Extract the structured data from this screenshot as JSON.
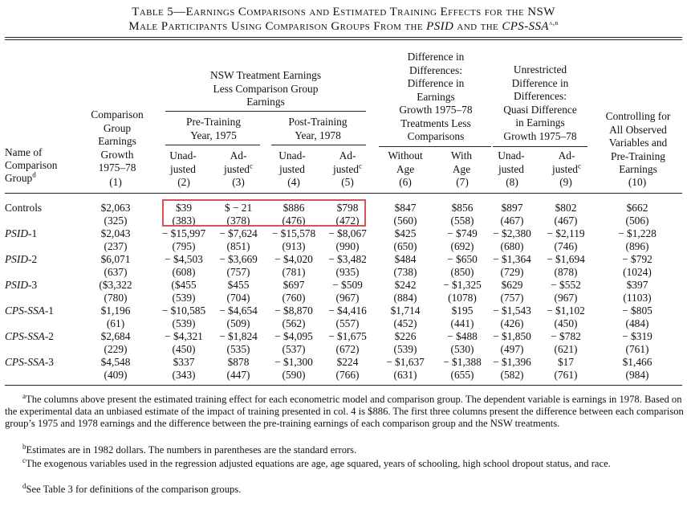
{
  "title": {
    "line1": "Table 5—Earnings Comparisons and Estimated Training Effects for the NSW",
    "line2_pre": "Male Participants Using Comparison Groups From the ",
    "psid": "PSID",
    "and_the": " and the ",
    "cpsssa": "CPS-SSA",
    "marks": "a,b"
  },
  "headers": {
    "col1": [
      "Comparison",
      "Group",
      "Earnings",
      "Growth",
      "1975–78"
    ],
    "group_a": [
      "NSW Treatment Earnings",
      "Less Comparison Group",
      "Earnings"
    ],
    "pre": [
      "Pre-Training",
      "Year, 1975"
    ],
    "post": [
      "Post-Training",
      "Year, 1978"
    ],
    "unadjusted": [
      "Unad-",
      "justed"
    ],
    "adjusted": [
      "Ad-",
      "justed"
    ],
    "adjusted_mark": "c",
    "did": [
      "Difference in",
      "Differences:",
      "Difference in",
      "Earnings",
      "Growth 1975–78",
      "Treatments Less",
      "Comparisons"
    ],
    "without_age": [
      "Without",
      "Age"
    ],
    "with_age": [
      "With",
      "Age"
    ],
    "unrestricted": [
      "Unrestricted",
      "Difference in",
      "Differences:",
      "Quasi Difference",
      "in Earnings",
      "Growth 1975–78"
    ],
    "controlling": [
      "Controlling for",
      "All Observed",
      "Variables and",
      "Pre-Training",
      "Earnings"
    ],
    "name_of": [
      "Name of",
      "Comparison",
      "Group"
    ],
    "name_mark": "d",
    "col_numbers": [
      "(1)",
      "(2)",
      "(3)",
      "(4)",
      "(5)",
      "(6)",
      "(7)",
      "(8)",
      "(9)",
      "(10)"
    ]
  },
  "rows": [
    {
      "name": "Controls",
      "italic": "",
      "suffix": "",
      "est": [
        "$2,063",
        "$39",
        "$ − 21",
        "$886",
        "$798",
        "$847",
        "$856",
        "$897",
        "$802",
        "$662"
      ],
      "se": [
        "(325)",
        "(383)",
        "(378)",
        "(476)",
        "(472)",
        "(560)",
        "(558)",
        "(467)",
        "(467)",
        "(506)"
      ]
    },
    {
      "name": "",
      "italic": "PSID",
      "suffix": "-1",
      "est": [
        "$2,043",
        "− $15,997",
        "− $7,624",
        "− $15,578",
        "− $8,067",
        "$425",
        "− $749",
        "− $2,380",
        "− $2,119",
        "− $1,228"
      ],
      "se": [
        "(237)",
        "(795)",
        "(851)",
        "(913)",
        "(990)",
        "(650)",
        "(692)",
        "(680)",
        "(746)",
        "(896)"
      ]
    },
    {
      "name": "",
      "italic": "PSID",
      "suffix": "-2",
      "est": [
        "$6,071",
        "− $4,503",
        "− $3,669",
        "− $4,020",
        "− $3,482",
        "$484",
        "− $650",
        "− $1,364",
        "− $1,694",
        "− $792"
      ],
      "se": [
        "(637)",
        "(608)",
        "(757)",
        "(781)",
        "(935)",
        "(738)",
        "(850)",
        "(729)",
        "(878)",
        "(1024)"
      ]
    },
    {
      "name": "",
      "italic": "PSID",
      "suffix": "-3",
      "est": [
        "($3,322",
        "($455",
        "$455",
        "$697",
        "− $509",
        "$242",
        "− $1,325",
        "$629",
        "− $552",
        "$397"
      ],
      "se": [
        "(780)",
        "(539)",
        "(704)",
        "(760)",
        "(967)",
        "(884)",
        "(1078)",
        "(757)",
        "(967)",
        "(1103)"
      ]
    },
    {
      "name": "",
      "italic": "CPS-SSA",
      "suffix": "-1",
      "est": [
        "$1,196",
        "− $10,585",
        "− $4,654",
        "− $8,870",
        "− $4,416",
        "$1,714",
        "$195",
        "− $1,543",
        "− $1,102",
        "− $805"
      ],
      "se": [
        "(61)",
        "(539)",
        "(509)",
        "(562)",
        "(557)",
        "(452)",
        "(441)",
        "(426)",
        "(450)",
        "(484)"
      ]
    },
    {
      "name": "",
      "italic": "CPS-SSA",
      "suffix": "-2",
      "est": [
        "$2,684",
        "− $4,321",
        "− $1,824",
        "− $4,095",
        "− $1,675",
        "$226",
        "− $488",
        "− $1,850",
        "− $782",
        "− $319"
      ],
      "se": [
        "(229)",
        "(450)",
        "(535)",
        "(537)",
        "(672)",
        "(539)",
        "(530)",
        "(497)",
        "(621)",
        "(761)"
      ]
    },
    {
      "name": "",
      "italic": "CPS-SSA",
      "suffix": "-3",
      "est": [
        "$4,548",
        "$337",
        "$878",
        "− $1,300",
        "$224",
        "− $1,637",
        "− $1,388",
        "− $1,396",
        "$17",
        "$1,466"
      ],
      "se": [
        "(409)",
        "(343)",
        "(447)",
        "(590)",
        "(766)",
        "(631)",
        "(655)",
        "(582)",
        "(761)",
        "(984)"
      ]
    }
  ],
  "footnotes": [
    {
      "mark": "a",
      "text": "The columns above present the estimated training effect for each econometric model and comparison group. The dependent variable is earnings in 1978. Based on the experimental data an unbiased estimate of the impact of training presented in col. 4 is $886. The first three columns present the difference between each comparison group’s 1975 and 1978 earnings and the difference between the pre-training earnings of each comparison group and the NSW treatments."
    },
    {
      "mark": "b",
      "text": "Estimates are in 1982 dollars. The numbers in parentheses are the standard errors."
    },
    {
      "mark": "c",
      "text": "The exogenous variables used in the regression adjusted equations are age, age squared, years of schooling, high school dropout status, and race."
    },
    {
      "mark": "d",
      "text": "See Table 3 for definitions of the comparison groups."
    }
  ],
  "highlight_color": "#d9534f"
}
